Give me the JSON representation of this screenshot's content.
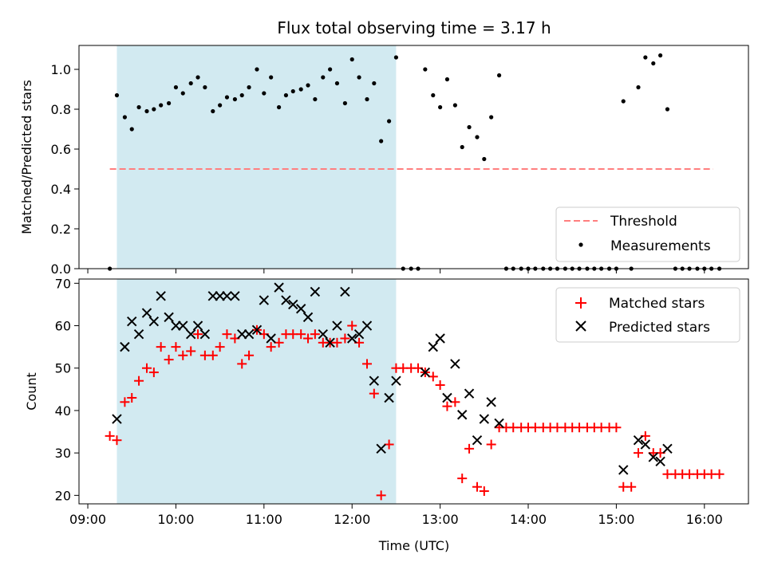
{
  "chart_data": [
    {
      "type": "scatter",
      "title": "Flux total observing time = 3.17 h",
      "ylabel": "Matched/Predicted stars",
      "xlabel": "",
      "x_unit": "hours (UTC)",
      "xlim": [
        8.9,
        16.5
      ],
      "ylim": [
        0,
        1.12
      ],
      "yticks": [
        0.0,
        0.2,
        0.4,
        0.6,
        0.8,
        1.0
      ],
      "ytick_labels": [
        "0.0",
        "0.2",
        "0.4",
        "0.6",
        "0.8",
        "1.0"
      ],
      "x_tick_labels_visible": false,
      "shaded_region": {
        "x0": 9.33,
        "x1": 12.5,
        "color": "#add8e6"
      },
      "legend": {
        "placement": "lower-right",
        "entries": [
          "Threshold",
          "Measurements"
        ]
      },
      "series": [
        {
          "name": "Threshold",
          "style": "dashed-line",
          "color": "#ff7f7f",
          "points": [
            [
              9.25,
              0.5
            ],
            [
              16.1,
              0.5
            ]
          ]
        },
        {
          "name": "Measurements",
          "style": "dot",
          "color": "#000000",
          "points": [
            [
              9.25,
              0.0
            ],
            [
              9.33,
              0.87
            ],
            [
              9.42,
              0.76
            ],
            [
              9.5,
              0.7
            ],
            [
              9.58,
              0.81
            ],
            [
              9.67,
              0.79
            ],
            [
              9.75,
              0.8
            ],
            [
              9.83,
              0.82
            ],
            [
              9.92,
              0.83
            ],
            [
              10.0,
              0.91
            ],
            [
              10.08,
              0.88
            ],
            [
              10.17,
              0.93
            ],
            [
              10.25,
              0.96
            ],
            [
              10.33,
              0.91
            ],
            [
              10.42,
              0.79
            ],
            [
              10.5,
              0.82
            ],
            [
              10.58,
              0.86
            ],
            [
              10.67,
              0.85
            ],
            [
              10.75,
              0.87
            ],
            [
              10.83,
              0.91
            ],
            [
              10.92,
              1.0
            ],
            [
              11.0,
              0.88
            ],
            [
              11.08,
              0.96
            ],
            [
              11.17,
              0.81
            ],
            [
              11.25,
              0.87
            ],
            [
              11.33,
              0.89
            ],
            [
              11.42,
              0.9
            ],
            [
              11.5,
              0.92
            ],
            [
              11.58,
              0.85
            ],
            [
              11.67,
              0.96
            ],
            [
              11.75,
              1.0
            ],
            [
              11.83,
              0.93
            ],
            [
              11.92,
              0.83
            ],
            [
              12.0,
              1.05
            ],
            [
              12.08,
              0.96
            ],
            [
              12.17,
              0.85
            ],
            [
              12.25,
              0.93
            ],
            [
              12.33,
              0.64
            ],
            [
              12.42,
              0.74
            ],
            [
              12.5,
              1.06
            ],
            [
              12.58,
              0.0
            ],
            [
              12.67,
              0.0
            ],
            [
              12.75,
              0.0
            ],
            [
              12.83,
              1.0
            ],
            [
              12.92,
              0.87
            ],
            [
              13.0,
              0.81
            ],
            [
              13.08,
              0.95
            ],
            [
              13.17,
              0.82
            ],
            [
              13.25,
              0.61
            ],
            [
              13.33,
              0.71
            ],
            [
              13.42,
              0.66
            ],
            [
              13.5,
              0.55
            ],
            [
              13.58,
              0.76
            ],
            [
              13.67,
              0.97
            ],
            [
              13.75,
              0.0
            ],
            [
              13.83,
              0.0
            ],
            [
              13.92,
              0.0
            ],
            [
              14.0,
              0.0
            ],
            [
              14.08,
              0.0
            ],
            [
              14.17,
              0.0
            ],
            [
              14.25,
              0.0
            ],
            [
              14.33,
              0.0
            ],
            [
              14.42,
              0.0
            ],
            [
              14.5,
              0.0
            ],
            [
              14.58,
              0.0
            ],
            [
              14.67,
              0.0
            ],
            [
              14.75,
              0.0
            ],
            [
              14.83,
              0.0
            ],
            [
              14.92,
              0.0
            ],
            [
              15.0,
              0.0
            ],
            [
              15.08,
              0.84
            ],
            [
              15.17,
              0.0
            ],
            [
              15.25,
              0.91
            ],
            [
              15.33,
              1.06
            ],
            [
              15.42,
              1.03
            ],
            [
              15.5,
              1.07
            ],
            [
              15.58,
              0.8
            ],
            [
              15.67,
              0.0
            ],
            [
              15.75,
              0.0
            ],
            [
              15.83,
              0.0
            ],
            [
              15.92,
              0.0
            ],
            [
              16.0,
              0.0
            ],
            [
              16.08,
              0.0
            ],
            [
              16.17,
              0.0
            ]
          ]
        }
      ]
    },
    {
      "type": "scatter",
      "title": "",
      "ylabel": "Count",
      "xlabel": "Time (UTC)",
      "x_unit": "hours (UTC)",
      "xlim": [
        8.9,
        16.5
      ],
      "ylim": [
        18,
        71
      ],
      "yticks": [
        20,
        30,
        40,
        50,
        60,
        70
      ],
      "ytick_labels": [
        "20",
        "30",
        "40",
        "50",
        "60",
        "70"
      ],
      "xticks": [
        9,
        10,
        11,
        12,
        13,
        14,
        15,
        16
      ],
      "xtick_labels": [
        "09:00",
        "10:00",
        "11:00",
        "12:00",
        "13:00",
        "14:00",
        "15:00",
        "16:00"
      ],
      "shaded_region": {
        "x0": 9.33,
        "x1": 12.5,
        "color": "#add8e6"
      },
      "legend": {
        "placement": "top-right",
        "entries": [
          "Matched stars",
          "Predicted stars"
        ]
      },
      "series": [
        {
          "name": "Matched stars",
          "marker": "plus",
          "color": "#ff0000",
          "points": [
            [
              9.25,
              34
            ],
            [
              9.33,
              33
            ],
            [
              9.42,
              42
            ],
            [
              9.5,
              43
            ],
            [
              9.58,
              47
            ],
            [
              9.67,
              50
            ],
            [
              9.75,
              49
            ],
            [
              9.83,
              55
            ],
            [
              9.92,
              52
            ],
            [
              10.0,
              55
            ],
            [
              10.08,
              53
            ],
            [
              10.17,
              54
            ],
            [
              10.25,
              58
            ],
            [
              10.33,
              53
            ],
            [
              10.42,
              53
            ],
            [
              10.5,
              55
            ],
            [
              10.58,
              58
            ],
            [
              10.67,
              57
            ],
            [
              10.75,
              51
            ],
            [
              10.83,
              53
            ],
            [
              10.92,
              59
            ],
            [
              11.0,
              58
            ],
            [
              11.08,
              55
            ],
            [
              11.17,
              56
            ],
            [
              11.25,
              58
            ],
            [
              11.33,
              58
            ],
            [
              11.42,
              58
            ],
            [
              11.5,
              57
            ],
            [
              11.58,
              58
            ],
            [
              11.67,
              56
            ],
            [
              11.75,
              56
            ],
            [
              11.83,
              56
            ],
            [
              11.92,
              57
            ],
            [
              12.0,
              60
            ],
            [
              12.08,
              56
            ],
            [
              12.17,
              51
            ],
            [
              12.25,
              44
            ],
            [
              12.33,
              20
            ],
            [
              12.42,
              32
            ],
            [
              12.5,
              50
            ],
            [
              12.58,
              50
            ],
            [
              12.67,
              50
            ],
            [
              12.75,
              50
            ],
            [
              12.83,
              49
            ],
            [
              12.92,
              48
            ],
            [
              13.0,
              46
            ],
            [
              13.08,
              41
            ],
            [
              13.17,
              42
            ],
            [
              13.25,
              24
            ],
            [
              13.33,
              31
            ],
            [
              13.42,
              22
            ],
            [
              13.5,
              21
            ],
            [
              13.58,
              32
            ],
            [
              13.67,
              36
            ],
            [
              13.75,
              36
            ],
            [
              13.83,
              36
            ],
            [
              13.92,
              36
            ],
            [
              14.0,
              36
            ],
            [
              14.08,
              36
            ],
            [
              14.17,
              36
            ],
            [
              14.25,
              36
            ],
            [
              14.33,
              36
            ],
            [
              14.42,
              36
            ],
            [
              14.5,
              36
            ],
            [
              14.58,
              36
            ],
            [
              14.67,
              36
            ],
            [
              14.75,
              36
            ],
            [
              14.83,
              36
            ],
            [
              14.92,
              36
            ],
            [
              15.0,
              36
            ],
            [
              15.08,
              22
            ],
            [
              15.17,
              22
            ],
            [
              15.25,
              30
            ],
            [
              15.33,
              34
            ],
            [
              15.42,
              30
            ],
            [
              15.5,
              30
            ],
            [
              15.58,
              25
            ],
            [
              15.67,
              25
            ],
            [
              15.75,
              25
            ],
            [
              15.83,
              25
            ],
            [
              15.92,
              25
            ],
            [
              16.0,
              25
            ],
            [
              16.08,
              25
            ],
            [
              16.17,
              25
            ]
          ]
        },
        {
          "name": "Predicted stars",
          "marker": "x",
          "color": "#000000",
          "points": [
            [
              9.33,
              38
            ],
            [
              9.42,
              55
            ],
            [
              9.5,
              61
            ],
            [
              9.58,
              58
            ],
            [
              9.67,
              63
            ],
            [
              9.75,
              61
            ],
            [
              9.83,
              67
            ],
            [
              9.92,
              62
            ],
            [
              10.0,
              60
            ],
            [
              10.08,
              60
            ],
            [
              10.17,
              58
            ],
            [
              10.25,
              60
            ],
            [
              10.33,
              58
            ],
            [
              10.42,
              67
            ],
            [
              10.5,
              67
            ],
            [
              10.58,
              67
            ],
            [
              10.67,
              67
            ],
            [
              10.75,
              58
            ],
            [
              10.83,
              58
            ],
            [
              10.92,
              59
            ],
            [
              11.0,
              66
            ],
            [
              11.08,
              57
            ],
            [
              11.17,
              69
            ],
            [
              11.25,
              66
            ],
            [
              11.33,
              65
            ],
            [
              11.42,
              64
            ],
            [
              11.5,
              62
            ],
            [
              11.58,
              68
            ],
            [
              11.67,
              58
            ],
            [
              11.75,
              56
            ],
            [
              11.83,
              60
            ],
            [
              11.92,
              68
            ],
            [
              12.0,
              57
            ],
            [
              12.08,
              58
            ],
            [
              12.17,
              60
            ],
            [
              12.25,
              47
            ],
            [
              12.33,
              31
            ],
            [
              12.42,
              43
            ],
            [
              12.5,
              47
            ],
            [
              12.83,
              49
            ],
            [
              12.92,
              55
            ],
            [
              13.0,
              57
            ],
            [
              13.08,
              43
            ],
            [
              13.17,
              51
            ],
            [
              13.25,
              39
            ],
            [
              13.33,
              44
            ],
            [
              13.42,
              33
            ],
            [
              13.5,
              38
            ],
            [
              13.58,
              42
            ],
            [
              13.67,
              37
            ],
            [
              15.08,
              26
            ],
            [
              15.25,
              33
            ],
            [
              15.33,
              32
            ],
            [
              15.42,
              29
            ],
            [
              15.5,
              28
            ],
            [
              15.58,
              31
            ]
          ]
        }
      ]
    }
  ]
}
